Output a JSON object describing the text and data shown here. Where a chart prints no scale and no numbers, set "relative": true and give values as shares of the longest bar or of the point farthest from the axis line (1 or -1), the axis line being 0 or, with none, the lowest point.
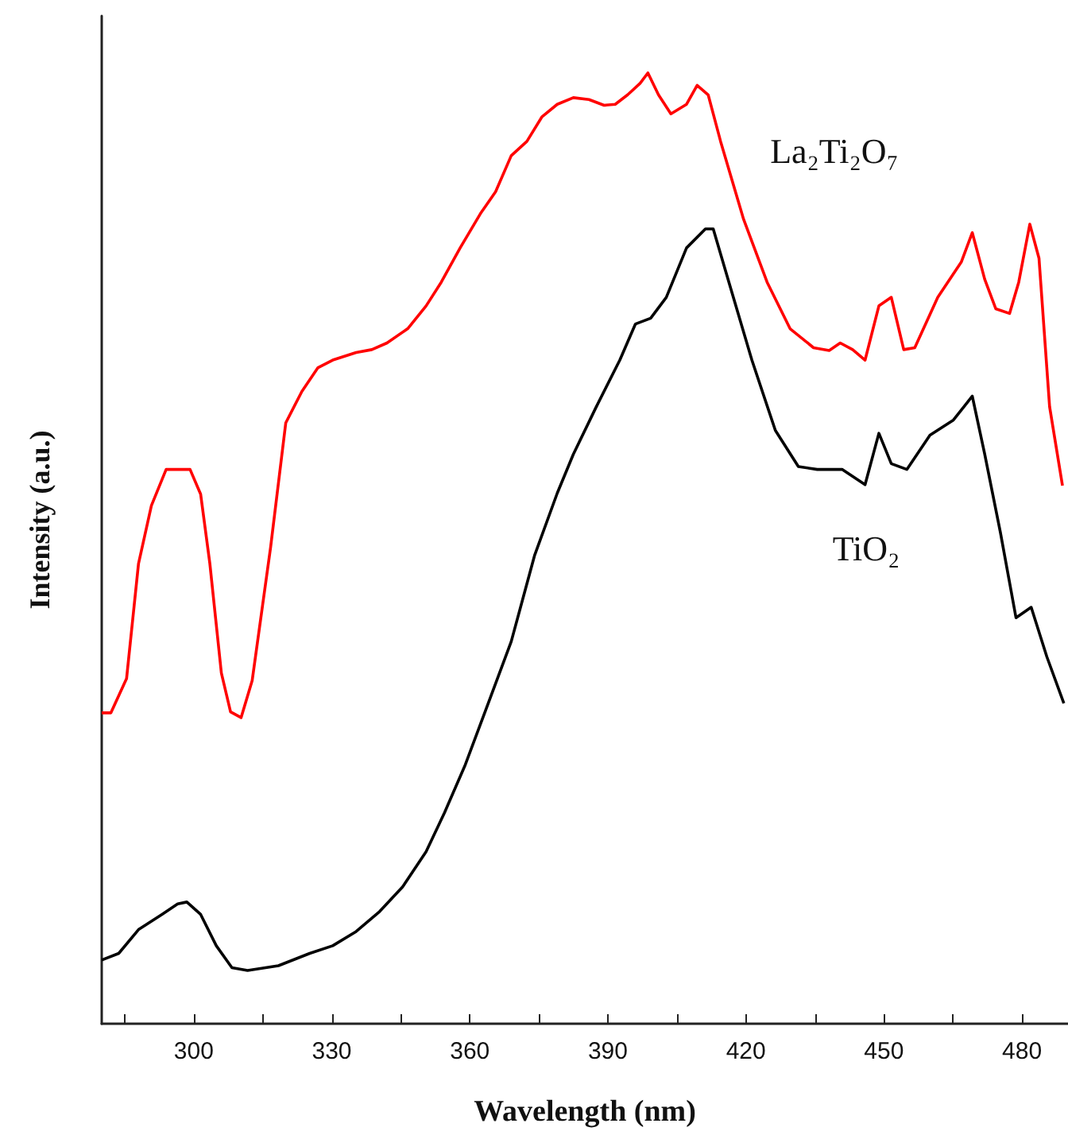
{
  "chart_data": {
    "type": "line",
    "relative": true,
    "xlabel": "Wavelength (nm)",
    "ylabel": "Intensity (a.u.)",
    "xlim": [
      280,
      490
    ],
    "xticks": [
      {
        "value": 285,
        "label": null
      },
      300,
      {
        "value": 315,
        "label": null
      },
      330,
      {
        "value": 345,
        "label": null
      },
      360,
      {
        "value": 375,
        "label": null
      },
      390,
      {
        "value": 405,
        "label": null
      },
      420,
      {
        "value": 435,
        "label": null
      },
      450,
      {
        "value": 465,
        "label": null
      },
      480
    ],
    "grid": false,
    "marker": "none",
    "line_style": "solid",
    "series": [
      {
        "name": "La₂Ti₂O₇",
        "color": "#ff0000",
        "x": [
          280,
          282,
          285.4,
          288,
          290.8,
          294,
          296.5,
          299.2,
          301.5,
          303.5,
          306,
          308,
          310.3,
          312.7,
          316.7,
          320,
          323.5,
          327,
          330.2,
          335.3,
          338.7,
          342,
          346.5,
          350.5,
          353.8,
          357.9,
          362.3,
          365.6,
          369,
          372.4,
          375.7,
          379,
          382.5,
          385.9,
          389.2,
          391.6,
          394.3,
          397,
          398.7,
          401,
          403.7,
          407.1,
          409.4,
          411.8,
          414.5,
          419.5,
          424.6,
          429.6,
          434.7,
          438.1,
          440.5,
          443.2,
          445.9,
          448.9,
          451.6,
          454.3,
          456.7,
          461.7,
          466.8,
          469.2,
          471.9,
          474.3,
          477.3,
          479.3,
          481.7,
          483.7,
          486,
          488.8
        ],
        "values": [
          0.327,
          0.327,
          0.363,
          0.484,
          0.545,
          0.583,
          0.583,
          0.583,
          0.557,
          0.484,
          0.369,
          0.328,
          0.322,
          0.361,
          0.501,
          0.632,
          0.665,
          0.69,
          0.698,
          0.706,
          0.709,
          0.716,
          0.731,
          0.755,
          0.78,
          0.816,
          0.852,
          0.875,
          0.913,
          0.928,
          0.954,
          0.967,
          0.974,
          0.972,
          0.966,
          0.967,
          0.977,
          0.989,
          1,
          0.977,
          0.957,
          0.967,
          0.987,
          0.977,
          0.928,
          0.846,
          0.78,
          0.731,
          0.711,
          0.708,
          0.716,
          0.709,
          0.698,
          0.755,
          0.764,
          0.709,
          0.711,
          0.764,
          0.801,
          0.832,
          0.783,
          0.752,
          0.747,
          0.78,
          0.841,
          0.805,
          0.649,
          0.566
        ]
      },
      {
        "name": "TiO₂",
        "color": "#000000",
        "x": [
          280,
          283.7,
          288,
          293.1,
          296.5,
          298.5,
          301.5,
          304.9,
          308.3,
          311.7,
          318.4,
          325.2,
          330.2,
          335.3,
          340.4,
          345.4,
          350.5,
          354.5,
          358.9,
          364,
          369,
          374.1,
          379,
          382.5,
          387.5,
          392.6,
          396,
          399.3,
          402.7,
          407.1,
          411.2,
          412.9,
          416.3,
          421.3,
          426.4,
          431.4,
          435.5,
          440.9,
          445.9,
          448.9,
          451.6,
          455,
          460,
          465.1,
          469.2,
          471.9,
          475.3,
          478.7,
          482,
          485.4,
          489.1
        ],
        "values": [
          0.067,
          0.074,
          0.099,
          0.115,
          0.126,
          0.128,
          0.115,
          0.082,
          0.059,
          0.056,
          0.061,
          0.074,
          0.082,
          0.097,
          0.118,
          0.144,
          0.181,
          0.222,
          0.271,
          0.337,
          0.402,
          0.493,
          0.558,
          0.599,
          0.649,
          0.698,
          0.736,
          0.742,
          0.764,
          0.816,
          0.836,
          0.836,
          0.78,
          0.698,
          0.624,
          0.586,
          0.583,
          0.583,
          0.567,
          0.621,
          0.589,
          0.583,
          0.619,
          0.635,
          0.66,
          0.599,
          0.517,
          0.427,
          0.438,
          0.386,
          0.337
        ]
      }
    ]
  }
}
